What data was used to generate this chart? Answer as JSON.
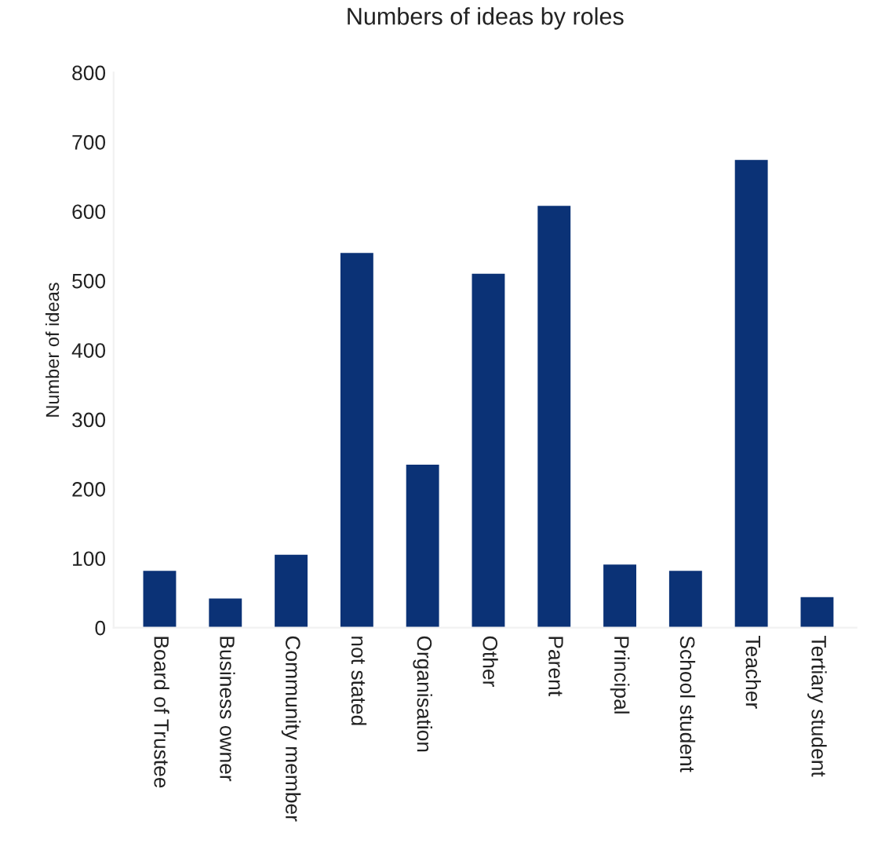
{
  "chart_data": {
    "type": "bar",
    "title": "Numbers of ideas by roles",
    "ylabel": "Number of ideas",
    "categories": [
      "Board of Trustee",
      "Business owner",
      "Community member",
      "not stated",
      "Organisation",
      "Other",
      "Parent",
      "Principal",
      "School student",
      "Teacher",
      "Tertiary student"
    ],
    "values": [
      82,
      42,
      105,
      540,
      235,
      510,
      608,
      91,
      82,
      674,
      44
    ],
    "color": "#0b3276",
    "ylim": [
      0,
      800
    ],
    "yticks": [
      0,
      100,
      200,
      300,
      400,
      500,
      600,
      700,
      800
    ],
    "grid": false,
    "legend": false
  }
}
